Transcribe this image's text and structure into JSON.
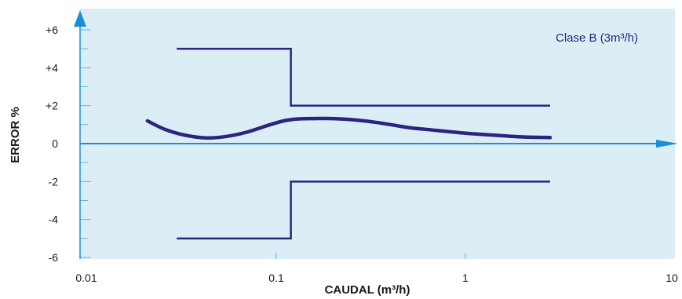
{
  "chart_data": {
    "type": "line",
    "title": "",
    "xlabel": "CAUDAL (m³/h)",
    "ylabel": "ERROR %",
    "x_scale": "log",
    "xlim": [
      0.01,
      10
    ],
    "ylim": [
      -6,
      6
    ],
    "x_ticks": [
      "0.01",
      "0.1",
      "1",
      "10"
    ],
    "y_ticks": [
      "+6",
      "+4",
      "+2",
      "0",
      "-2",
      "-4",
      "-6"
    ],
    "grid": false,
    "annotation": "Clase B (3m³/h)",
    "series": [
      {
        "role": "upper-limit",
        "x": [
          0.03,
          0.12,
          0.12,
          2.8
        ],
        "y": [
          5,
          5,
          2,
          2
        ]
      },
      {
        "role": "lower-limit",
        "x": [
          0.03,
          0.12,
          0.12,
          2.8
        ],
        "y": [
          -5,
          -5,
          -2,
          -2
        ]
      },
      {
        "role": "error-curve",
        "x": [
          0.021,
          0.026,
          0.033,
          0.043,
          0.055,
          0.07,
          0.09,
          0.11,
          0.13,
          0.16,
          0.2,
          0.26,
          0.35,
          0.5,
          0.7,
          1.0,
          1.4,
          2.0,
          2.8
        ],
        "y": [
          1.2,
          0.75,
          0.45,
          0.3,
          0.38,
          0.6,
          0.95,
          1.2,
          1.3,
          1.32,
          1.32,
          1.25,
          1.1,
          0.85,
          0.7,
          0.55,
          0.45,
          0.35,
          0.32
        ]
      }
    ]
  },
  "colors": {
    "plot_background": "#dceef5",
    "line": "#2a2580",
    "axis": "#1a8fd6",
    "tick": "#6bb3d9"
  }
}
